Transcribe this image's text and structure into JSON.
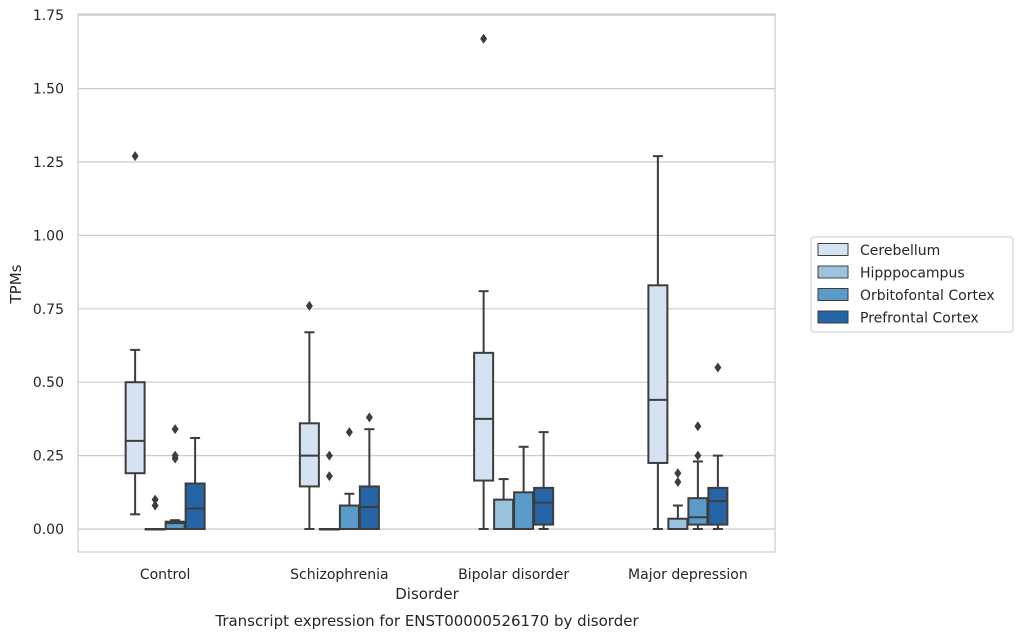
{
  "chart_data": {
    "type": "box",
    "title": "",
    "xlabel": "Disorder",
    "ylabel": "TPMs",
    "caption": "Transcript expression for ENST00000526170 by disorder",
    "ylim": [
      -0.08,
      1.76
    ],
    "yticks": [
      "0.00",
      "0.25",
      "0.50",
      "0.75",
      "1.00",
      "1.25",
      "1.50",
      "1.75"
    ],
    "ytick_values": [
      0,
      0.25,
      0.5,
      0.75,
      1.0,
      1.25,
      1.5,
      1.75
    ],
    "grid": "horizontal",
    "legend_position": "right",
    "categories": [
      "Control",
      "Schizophrenia",
      "Bipolar disorder",
      "Major depression"
    ],
    "series": [
      {
        "name": "Cerebellum",
        "color": "#d4e2f1",
        "boxes": [
          {
            "whislo": 0.05,
            "q1": 0.19,
            "med": 0.3,
            "q3": 0.5,
            "whishi": 0.61,
            "fliers": [
              1.27
            ]
          },
          {
            "whislo": 0.0,
            "q1": 0.145,
            "med": 0.25,
            "q3": 0.36,
            "whishi": 0.67,
            "fliers": [
              0.76
            ]
          },
          {
            "whislo": 0.0,
            "q1": 0.165,
            "med": 0.375,
            "q3": 0.6,
            "whishi": 0.81,
            "fliers": [
              1.67
            ]
          },
          {
            "whislo": 0.0,
            "q1": 0.225,
            "med": 0.44,
            "q3": 0.83,
            "whishi": 1.27,
            "fliers": []
          }
        ]
      },
      {
        "name": "Hipppocampus",
        "color": "#9cc3dd",
        "boxes": [
          {
            "whislo": 0.0,
            "q1": 0.0,
            "med": 0.0,
            "q3": 0.0,
            "whishi": 0.0,
            "fliers": [
              0.1,
              0.08
            ]
          },
          {
            "whislo": 0.0,
            "q1": 0.0,
            "med": 0.0,
            "q3": 0.0,
            "whishi": 0.0,
            "fliers": [
              0.25,
              0.18
            ]
          },
          {
            "whislo": 0.0,
            "q1": 0.0,
            "med": 0.0,
            "q3": 0.1,
            "whishi": 0.17,
            "fliers": []
          },
          {
            "whislo": 0.0,
            "q1": 0.0,
            "med": 0.0,
            "q3": 0.035,
            "whishi": 0.08,
            "fliers": [
              0.19,
              0.16
            ]
          }
        ]
      },
      {
        "name": "Orbitofontal Cortex",
        "color": "#5a9bc9",
        "boxes": [
          {
            "whislo": 0.0,
            "q1": 0.0,
            "med": 0.02,
            "q3": 0.025,
            "whishi": 0.03,
            "fliers": [
              0.34,
              0.25,
              0.24
            ]
          },
          {
            "whislo": 0.0,
            "q1": 0.0,
            "med": 0.0,
            "q3": 0.08,
            "whishi": 0.12,
            "fliers": [
              0.33
            ]
          },
          {
            "whislo": 0.0,
            "q1": 0.0,
            "med": 0.0,
            "q3": 0.125,
            "whishi": 0.28,
            "fliers": []
          },
          {
            "whislo": 0.0,
            "q1": 0.015,
            "med": 0.04,
            "q3": 0.105,
            "whishi": 0.23,
            "fliers": [
              0.35,
              0.25
            ]
          }
        ]
      },
      {
        "name": "Prefrontal Cortex",
        "color": "#2565a5",
        "boxes": [
          {
            "whislo": 0.0,
            "q1": 0.0,
            "med": 0.07,
            "q3": 0.155,
            "whishi": 0.31,
            "fliers": []
          },
          {
            "whislo": 0.0,
            "q1": 0.0,
            "med": 0.075,
            "q3": 0.145,
            "whishi": 0.34,
            "fliers": [
              0.38
            ]
          },
          {
            "whislo": 0.0,
            "q1": 0.015,
            "med": 0.09,
            "q3": 0.14,
            "whishi": 0.33,
            "fliers": []
          },
          {
            "whislo": 0.0,
            "q1": 0.015,
            "med": 0.095,
            "q3": 0.14,
            "whishi": 0.25,
            "fliers": [
              0.55
            ]
          }
        ]
      }
    ]
  }
}
